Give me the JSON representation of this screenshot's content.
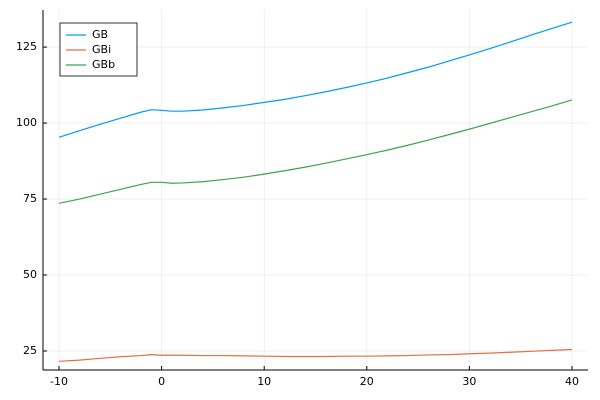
{
  "chart_data": {
    "type": "line",
    "x": [
      -10,
      -8,
      -6,
      -4,
      -2,
      -1,
      0,
      1,
      2,
      4,
      6,
      8,
      10,
      12,
      14,
      16,
      18,
      20,
      22,
      24,
      26,
      28,
      30,
      32,
      34,
      36,
      38,
      40
    ],
    "series": [
      {
        "name": "GB",
        "color": "#009af9",
        "values": [
          95.3,
          97.5,
          99.6,
          101.6,
          103.6,
          104.4,
          104.2,
          103.9,
          103.9,
          104.3,
          105.0,
          105.8,
          106.8,
          107.8,
          109.0,
          110.3,
          111.7,
          113.2,
          114.8,
          116.6,
          118.4,
          120.4,
          122.4,
          124.5,
          126.7,
          128.9,
          131.1,
          133.2
        ]
      },
      {
        "name": "GBi",
        "color": "#e26f46",
        "values": [
          21.6,
          22.0,
          22.6,
          23.1,
          23.5,
          23.8,
          23.6,
          23.6,
          23.6,
          23.5,
          23.5,
          23.4,
          23.3,
          23.2,
          23.2,
          23.2,
          23.3,
          23.3,
          23.4,
          23.5,
          23.7,
          23.8,
          24.1,
          24.3,
          24.6,
          24.9,
          25.2,
          25.5
        ]
      },
      {
        "name": "GBb",
        "color": "#3da44d",
        "values": [
          73.6,
          75.0,
          76.6,
          78.2,
          79.8,
          80.5,
          80.5,
          80.2,
          80.3,
          80.7,
          81.4,
          82.2,
          83.2,
          84.3,
          85.5,
          86.8,
          88.2,
          89.6,
          91.1,
          92.7,
          94.4,
          96.2,
          98.0,
          99.9,
          101.8,
          103.7,
          105.6,
          107.6
        ]
      }
    ],
    "xlim": [
      -11.56,
      41.56
    ],
    "ylim": [
      18.75,
      137.2
    ],
    "xticks": [
      -10,
      0,
      10,
      20,
      30,
      40
    ],
    "yticks": [
      25,
      50,
      75,
      100,
      125
    ],
    "grid": true,
    "legend": "top-left"
  }
}
